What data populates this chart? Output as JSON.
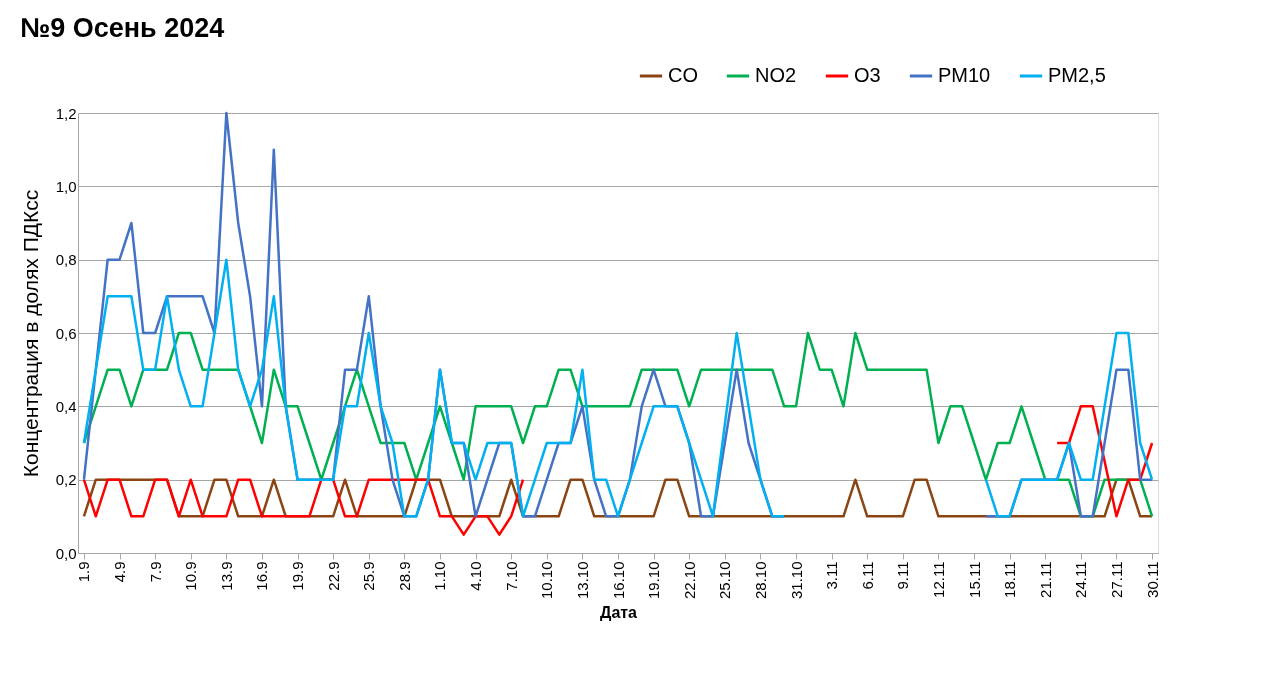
{
  "chart_data": {
    "type": "line",
    "title": "№9 Осень 2024",
    "xlabel": "Дата",
    "ylabel": "Концентрация в долях ПДКсс",
    "categories": [
      "1.9",
      null,
      null,
      "4.9",
      null,
      null,
      "7.9",
      null,
      null,
      "10.9",
      null,
      null,
      "13.9",
      null,
      null,
      "16.9",
      null,
      null,
      "19.9",
      null,
      null,
      "22.9",
      null,
      null,
      "25.9",
      null,
      null,
      "28.9",
      null,
      null,
      "1.10",
      null,
      null,
      "4.10",
      null,
      null,
      "7.10",
      null,
      null,
      "10.10",
      null,
      null,
      "13.10",
      null,
      null,
      "16.10",
      null,
      null,
      "19.10",
      null,
      null,
      "22.10",
      null,
      null,
      "25.10",
      null,
      null,
      "28.10",
      null,
      null,
      "31.10",
      null,
      null,
      "3.11",
      null,
      null,
      "6.11",
      null,
      null,
      "9.11",
      null,
      null,
      "12.11",
      null,
      null,
      "15.11",
      null,
      null,
      "18.11",
      null,
      null,
      "21.11",
      null,
      null,
      "24.11",
      null,
      null,
      "27.11",
      null,
      null,
      "30.11"
    ],
    "series": [
      {
        "name": "CO",
        "color": "#8b4513",
        "values": [
          0.1,
          0.2,
          0.2,
          0.2,
          0.2,
          0.2,
          0.2,
          0.2,
          0.1,
          0.1,
          0.1,
          0.2,
          0.2,
          0.1,
          0.1,
          0.1,
          0.2,
          0.1,
          0.1,
          0.1,
          0.1,
          0.1,
          0.2,
          0.1,
          0.1,
          0.1,
          0.1,
          0.1,
          0.2,
          0.2,
          0.2,
          0.1,
          0.1,
          0.1,
          0.1,
          0.1,
          0.2,
          0.1,
          0.1,
          0.1,
          0.1,
          0.2,
          0.2,
          0.1,
          0.1,
          0.1,
          0.1,
          0.1,
          0.1,
          0.2,
          0.2,
          0.1,
          0.1,
          0.1,
          0.1,
          0.1,
          0.1,
          0.1,
          0.1,
          0.1,
          0.1,
          0.1,
          0.1,
          0.1,
          0.1,
          0.2,
          0.1,
          0.1,
          0.1,
          0.1,
          0.2,
          0.2,
          0.1,
          0.1,
          0.1,
          0.1,
          0.1,
          0.1,
          0.1,
          0.1,
          0.1,
          0.1,
          0.1,
          0.1,
          0.1,
          0.1,
          0.1,
          0.2,
          0.2,
          0.1,
          0.1
        ]
      },
      {
        "name": "NO2",
        "color": "#00b050",
        "values": [
          0.3,
          0.4,
          0.5,
          0.5,
          0.4,
          0.5,
          0.5,
          0.5,
          0.6,
          0.6,
          0.5,
          0.5,
          0.5,
          0.5,
          0.4,
          0.3,
          0.5,
          0.4,
          0.4,
          0.3,
          0.2,
          0.3,
          0.4,
          0.5,
          0.4,
          0.3,
          0.3,
          0.3,
          0.2,
          0.3,
          0.4,
          0.3,
          0.2,
          0.4,
          0.4,
          0.4,
          0.4,
          0.3,
          0.4,
          0.4,
          0.5,
          0.5,
          0.4,
          0.4,
          0.4,
          0.4,
          0.4,
          0.5,
          0.5,
          0.5,
          0.5,
          0.4,
          0.5,
          0.5,
          0.5,
          0.5,
          0.5,
          0.5,
          0.5,
          0.4,
          0.4,
          0.6,
          0.5,
          0.5,
          0.4,
          0.6,
          0.5,
          0.5,
          0.5,
          0.5,
          0.5,
          0.5,
          0.3,
          0.4,
          0.4,
          0.3,
          0.2,
          0.3,
          0.3,
          0.4,
          0.3,
          0.2,
          0.2,
          0.2,
          0.1,
          0.1,
          0.2,
          0.2,
          0.2,
          0.2,
          0.1
        ]
      },
      {
        "name": "O3",
        "color": "#ff0000",
        "values": [
          0.2,
          0.1,
          0.2,
          0.2,
          0.1,
          0.1,
          0.2,
          0.2,
          0.1,
          0.2,
          0.1,
          0.1,
          0.1,
          0.2,
          0.2,
          0.1,
          0.1,
          0.1,
          0.1,
          0.1,
          0.2,
          0.2,
          0.1,
          0.1,
          0.2,
          0.2,
          0.2,
          0.2,
          0.2,
          0.2,
          0.1,
          0.1,
          0.05,
          0.1,
          0.1,
          0.05,
          0.1,
          0.2,
          null,
          null,
          null,
          null,
          null,
          null,
          null,
          null,
          null,
          null,
          null,
          null,
          null,
          null,
          null,
          null,
          null,
          null,
          null,
          null,
          null,
          null,
          null,
          null,
          null,
          null,
          null,
          null,
          null,
          null,
          null,
          null,
          null,
          null,
          null,
          null,
          null,
          null,
          null,
          null,
          null,
          null,
          null,
          null,
          0.3,
          0.3,
          0.4,
          0.4,
          0.25,
          0.1,
          0.2,
          0.2,
          0.3
        ]
      },
      {
        "name": "PM10",
        "color": "#4472c4",
        "values": [
          0.2,
          0.5,
          0.8,
          0.8,
          0.9,
          0.6,
          0.6,
          0.7,
          0.7,
          0.7,
          0.7,
          0.6,
          1.2,
          0.9,
          0.7,
          0.4,
          1.1,
          0.4,
          0.2,
          0.2,
          0.2,
          0.2,
          0.5,
          0.5,
          0.7,
          0.4,
          0.2,
          0.1,
          0.1,
          0.2,
          0.5,
          0.3,
          0.3,
          0.1,
          0.2,
          0.3,
          0.3,
          0.1,
          0.1,
          0.2,
          0.3,
          0.3,
          0.4,
          0.2,
          0.1,
          0.1,
          0.2,
          0.4,
          0.5,
          0.4,
          0.4,
          0.3,
          0.1,
          0.1,
          0.3,
          0.5,
          0.3,
          0.2,
          0.1,
          0.1,
          null,
          null,
          null,
          null,
          null,
          null,
          null,
          null,
          null,
          null,
          null,
          null,
          null,
          null,
          null,
          null,
          0.1,
          0.1,
          0.1,
          0.2,
          0.2,
          0.2,
          0.2,
          0.3,
          0.1,
          0.1,
          0.3,
          0.5,
          0.5,
          0.2,
          0.2
        ]
      },
      {
        "name": "PM2,5",
        "color": "#00b0f0",
        "values": [
          0.3,
          0.5,
          0.7,
          0.7,
          0.7,
          0.5,
          0.5,
          0.7,
          0.5,
          0.4,
          0.4,
          0.6,
          0.8,
          0.5,
          0.4,
          0.5,
          0.7,
          0.4,
          0.2,
          0.2,
          0.2,
          0.2,
          0.4,
          0.4,
          0.6,
          0.4,
          0.3,
          0.1,
          0.1,
          0.2,
          0.5,
          0.3,
          0.3,
          0.2,
          0.3,
          0.3,
          0.3,
          0.1,
          0.2,
          0.3,
          0.3,
          0.3,
          0.5,
          0.2,
          0.2,
          0.1,
          0.2,
          0.3,
          0.4,
          0.4,
          0.4,
          0.3,
          0.2,
          0.1,
          0.35,
          0.6,
          0.4,
          0.2,
          0.1,
          0.1,
          null,
          null,
          null,
          null,
          null,
          null,
          null,
          null,
          null,
          null,
          null,
          null,
          null,
          null,
          null,
          null,
          0.2,
          0.1,
          0.1,
          0.2,
          0.2,
          0.2,
          0.2,
          0.3,
          0.2,
          0.2,
          0.4,
          0.6,
          0.6,
          0.3,
          0.2
        ]
      }
    ],
    "ylim": [
      0,
      1.2
    ],
    "yticks": [
      {
        "value": 0,
        "label": "0,0"
      },
      {
        "value": 0.2,
        "label": "0,2"
      },
      {
        "value": 0.4,
        "label": "0,4"
      },
      {
        "value": 0.6,
        "label": "0,6"
      },
      {
        "value": 0.8,
        "label": "0,8"
      },
      {
        "value": 1.0,
        "label": "1,0"
      },
      {
        "value": 1.2,
        "label": "1,2"
      }
    ],
    "grid": "y",
    "legend": "top right",
    "marker": "none",
    "line_style": "solid"
  }
}
